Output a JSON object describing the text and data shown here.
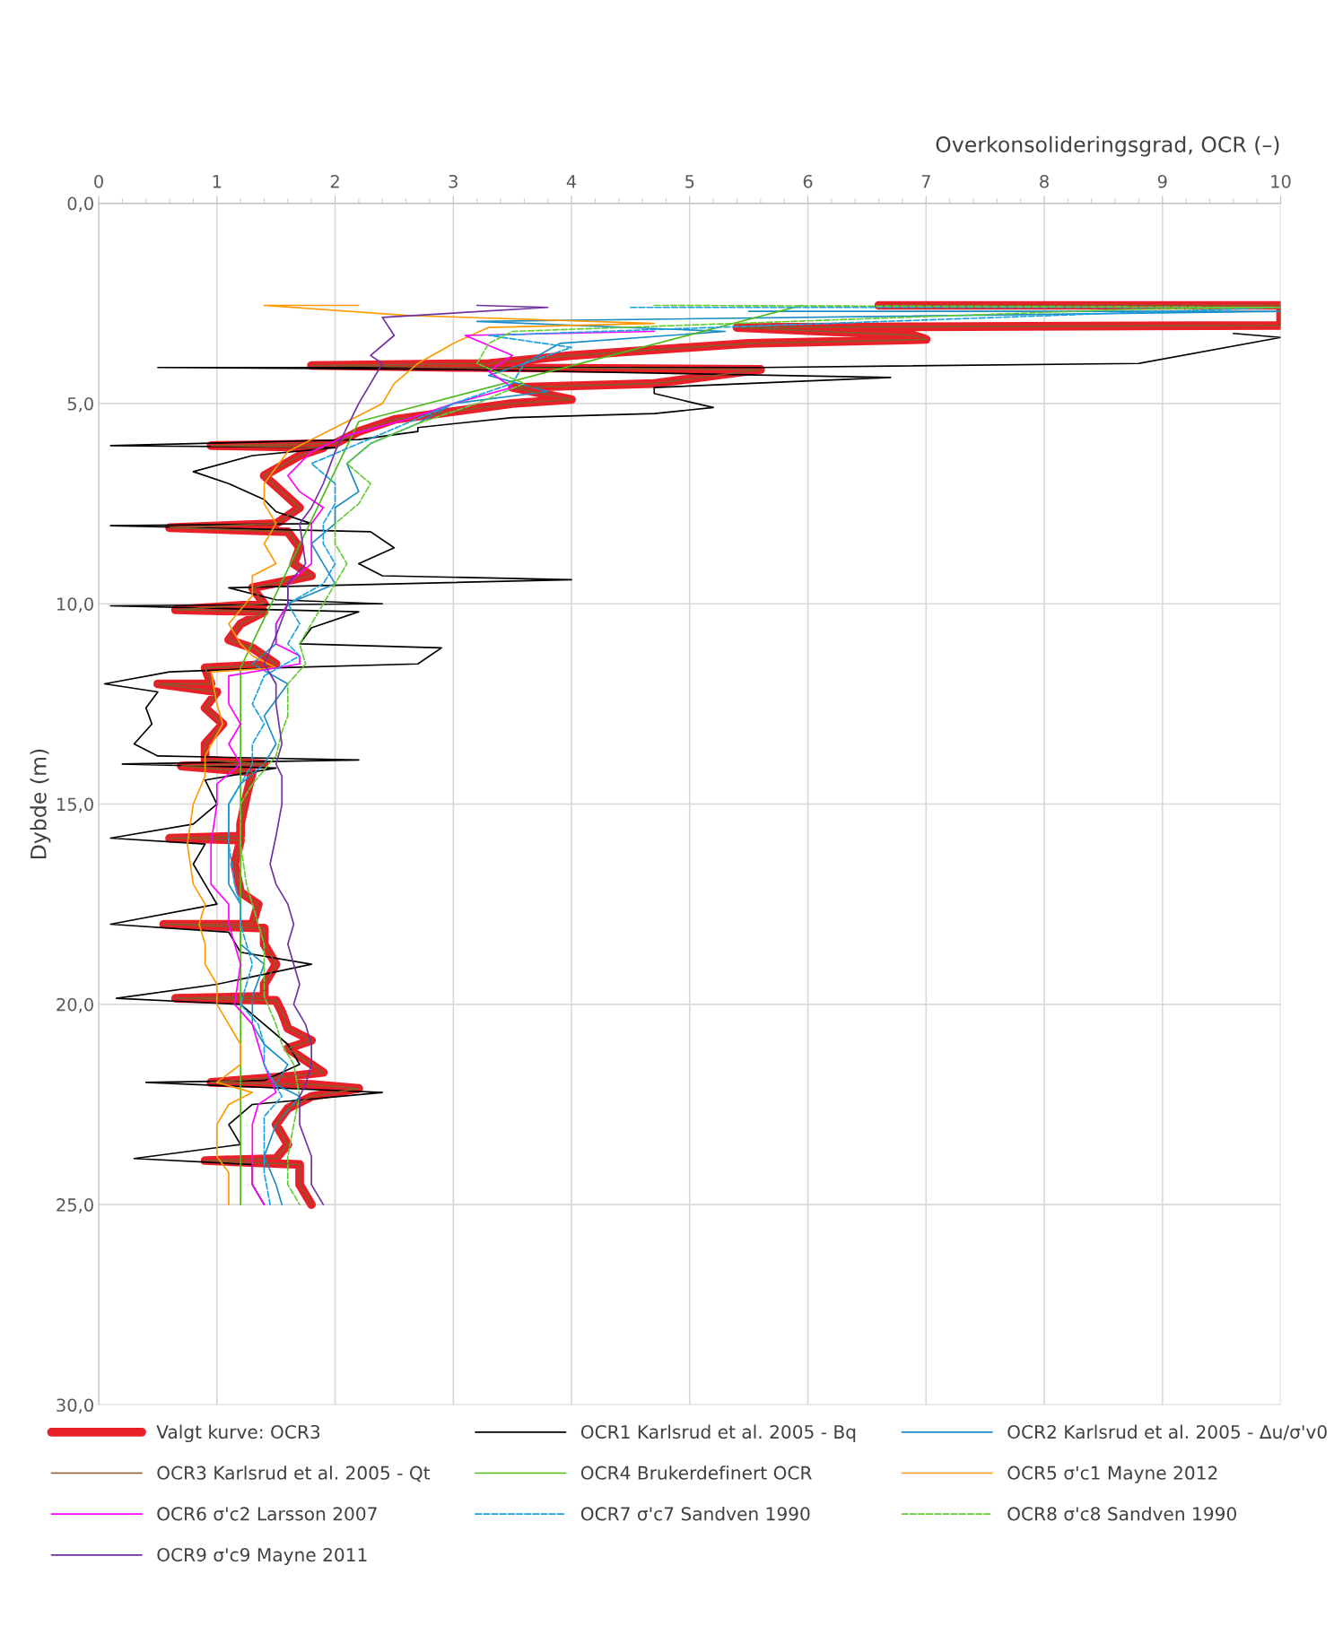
{
  "chart_data": {
    "type": "line",
    "xlabel": "Overkonsolideringsgrad, OCR (–)",
    "ylabel": "Dybde (m)",
    "xlim": [
      0,
      10
    ],
    "xticks": [
      0,
      1,
      2,
      3,
      4,
      5,
      6,
      7,
      8,
      9,
      10
    ],
    "ylim": [
      30,
      0
    ],
    "yticks": [
      {
        "value": 0,
        "label": "0,0"
      },
      {
        "value": 5,
        "label": "5,0"
      },
      {
        "value": 10,
        "label": "10,0"
      },
      {
        "value": 15,
        "label": "15,0"
      },
      {
        "value": 20,
        "label": "20,0"
      },
      {
        "value": 25,
        "label": "25,0"
      },
      {
        "value": 30,
        "label": "30,0"
      }
    ],
    "grid": true,
    "legend": "bottom",
    "marker": "none",
    "series": [
      {
        "name": "Valgt kurve: OCR3",
        "color": "#e8202a",
        "line_style": "solid",
        "x": [
          6.6,
          10,
          10,
          5.4,
          6.9,
          7.0,
          5.5,
          4.0,
          3.3,
          1.8,
          3.0,
          5.6,
          4.7,
          3.5,
          4.0,
          3.5,
          3.0,
          2.5,
          2.2,
          2.0,
          0.95,
          1.9,
          1.7,
          1.4,
          1.55,
          1.7,
          1.5,
          0.6,
          1.6,
          1.7,
          1.65,
          1.8,
          1.3,
          1.4,
          0.65,
          1.4,
          1.2,
          1.1,
          1.3,
          1.5,
          0.9,
          0.95,
          0.5,
          1.0,
          0.9,
          1.05,
          0.9,
          0.9,
          1.4,
          0.7,
          1.3,
          1.25,
          1.2,
          1.2,
          0.6,
          1.2,
          1.15,
          1.2,
          1.35,
          1.3,
          0.55,
          1.4,
          1.4,
          1.5,
          1.4,
          1.4,
          0.65,
          1.5,
          1.55,
          1.6,
          1.8,
          1.6,
          1.9,
          1.6,
          0.95,
          1.8,
          2.2,
          1.8,
          1.6,
          1.5,
          1.6,
          1.5,
          0.9,
          1.7,
          1.7,
          1.8
        ],
        "values": [
          2.55,
          2.55,
          3.05,
          3.1,
          3.3,
          3.4,
          3.5,
          3.8,
          4.0,
          4.05,
          4.1,
          4.15,
          4.5,
          4.6,
          4.9,
          5.0,
          5.2,
          5.4,
          5.7,
          6.0,
          6.05,
          6.1,
          6.3,
          6.8,
          7.2,
          7.6,
          8.0,
          8.1,
          8.2,
          8.6,
          9.0,
          9.3,
          9.6,
          10.0,
          10.15,
          10.2,
          10.5,
          10.9,
          11.1,
          11.5,
          11.6,
          12.0,
          12.0,
          12.2,
          12.6,
          13.0,
          13.5,
          13.9,
          14.0,
          14.05,
          14.2,
          14.8,
          15.5,
          15.8,
          15.85,
          15.9,
          16.5,
          17.2,
          17.5,
          18.0,
          18.0,
          18.1,
          18.5,
          19.0,
          19.5,
          19.8,
          19.85,
          19.9,
          20.2,
          20.6,
          20.9,
          21.1,
          21.7,
          21.8,
          21.95,
          22.0,
          22.1,
          22.3,
          22.6,
          23.0,
          23.5,
          23.85,
          23.9,
          24.0,
          24.5,
          25.0
        ]
      },
      {
        "name": "OCR1 Karlsrud et al. 2005 - Bq",
        "color": "#000000",
        "line_style": "solid",
        "x": [
          9.6,
          10,
          8.8,
          5.6,
          0.5,
          3.0,
          6.7,
          4.7,
          4.7,
          5.2,
          4.7,
          3.5,
          2.7,
          2.7,
          2.2,
          0.1,
          2.0,
          1.3,
          0.8,
          1.1,
          1.4,
          1.5,
          1.8,
          0.1,
          2.3,
          2.5,
          2.2,
          2.4,
          4.0,
          1.1,
          1.5,
          2.4,
          0.1,
          2.2,
          1.8,
          1.7,
          2.9,
          2.7,
          1.5,
          0.6,
          0.05,
          0.5,
          0.4,
          0.45,
          0.3,
          0.5,
          2.2,
          0.2,
          1.5,
          0.9,
          1.0,
          0.8,
          0.1,
          0.9,
          0.8,
          0.9,
          1.0,
          0.1,
          1.1,
          1.2,
          1.8,
          1.0,
          0.15,
          1.2,
          1.4,
          1.6,
          1.7,
          1.4,
          0.4,
          2.4,
          1.3,
          1.1,
          1.2,
          0.3,
          1.3,
          1.3,
          1.4
        ],
        "values": [
          3.25,
          3.35,
          4.0,
          4.1,
          4.1,
          4.15,
          4.35,
          4.6,
          4.75,
          5.1,
          5.25,
          5.35,
          5.6,
          5.7,
          5.9,
          6.05,
          6.1,
          6.3,
          6.7,
          7.0,
          7.4,
          7.7,
          8.0,
          8.05,
          8.2,
          8.6,
          9.0,
          9.3,
          9.4,
          9.6,
          9.9,
          10.0,
          10.05,
          10.2,
          10.6,
          11.0,
          11.1,
          11.5,
          11.6,
          11.7,
          12.0,
          12.2,
          12.6,
          13.0,
          13.5,
          13.8,
          13.9,
          14.0,
          14.1,
          14.4,
          15.0,
          15.5,
          15.85,
          16.0,
          16.5,
          17.0,
          17.5,
          18.0,
          18.2,
          18.7,
          19.0,
          19.5,
          19.85,
          20.0,
          20.5,
          21.0,
          21.5,
          21.9,
          21.95,
          22.2,
          22.5,
          23.0,
          23.5,
          23.85,
          24.0,
          24.5,
          25.0
        ]
      },
      {
        "name": "OCR2 Karlsrud et al. 2005 - Δu/σ'v0",
        "color": "#1b8cc4",
        "line_style": "solid",
        "x": [
          5.5,
          10,
          3.2,
          5.3,
          3.9,
          3.6,
          3.3,
          3.8,
          3.0,
          2.7,
          2.3,
          2.1,
          2.2,
          2.0,
          2.0,
          1.8,
          1.9,
          2.0,
          1.6,
          1.5,
          1.5,
          1.3,
          1.6,
          1.4,
          1.5,
          1.4,
          1.2,
          1.1,
          1.1,
          1.1,
          1.2,
          1.2,
          1.4,
          1.3,
          1.3,
          1.4,
          1.6,
          1.5,
          1.7,
          1.5,
          1.4,
          1.5,
          1.55
        ],
        "values": [
          2.7,
          2.7,
          2.95,
          3.2,
          3.5,
          4.0,
          4.3,
          4.7,
          5.0,
          5.5,
          6.0,
          6.5,
          7.2,
          7.6,
          8.0,
          8.5,
          9.0,
          9.5,
          10.0,
          10.5,
          11.0,
          11.5,
          12.0,
          12.8,
          13.5,
          14.0,
          14.5,
          15.0,
          16.0,
          17.0,
          17.5,
          18.5,
          19.0,
          19.8,
          20.5,
          21.0,
          21.5,
          22.0,
          22.3,
          23.0,
          23.8,
          24.5,
          25.0
        ]
      },
      {
        "name": "OCR3 Karlsrud et al. 2005 - Qt",
        "color": "#8b5a2b",
        "line_style": "solid",
        "x": [
          6.6,
          10,
          10,
          5.4,
          6.9,
          7.0,
          5.5,
          4.0,
          3.3,
          1.8,
          3.0,
          5.6,
          4.7,
          3.5,
          4.0,
          3.5,
          3.0,
          2.5,
          2.2,
          2.0,
          0.95,
          1.9,
          1.7,
          1.4,
          1.55,
          1.7,
          1.5,
          0.6,
          1.6,
          1.7,
          1.65,
          1.8,
          1.3,
          1.4,
          0.65,
          1.4,
          1.2,
          1.1,
          1.3,
          1.5,
          0.9,
          0.95,
          0.5,
          1.0,
          0.9,
          1.05,
          0.9,
          0.9,
          1.4,
          0.7,
          1.3,
          1.25,
          1.2,
          1.2,
          0.6,
          1.2,
          1.15,
          1.2,
          1.35,
          1.3,
          0.55,
          1.4,
          1.4,
          1.5,
          1.4,
          1.4,
          0.65,
          1.5,
          1.55,
          1.6,
          1.8,
          1.6,
          1.9,
          1.6,
          0.95,
          1.8,
          2.2,
          1.8,
          1.6,
          1.5,
          1.6,
          1.5,
          0.9,
          1.7,
          1.7,
          1.8
        ],
        "values": [
          2.55,
          2.55,
          3.05,
          3.1,
          3.3,
          3.4,
          3.5,
          3.8,
          4.0,
          4.05,
          4.1,
          4.15,
          4.5,
          4.6,
          4.9,
          5.0,
          5.2,
          5.4,
          5.7,
          6.0,
          6.05,
          6.1,
          6.3,
          6.8,
          7.2,
          7.6,
          8.0,
          8.1,
          8.2,
          8.6,
          9.0,
          9.3,
          9.6,
          10.0,
          10.15,
          10.2,
          10.5,
          10.9,
          11.1,
          11.5,
          11.6,
          12.0,
          12.0,
          12.2,
          12.6,
          13.0,
          13.5,
          13.9,
          14.0,
          14.05,
          14.2,
          14.8,
          15.5,
          15.8,
          15.85,
          15.9,
          16.5,
          17.2,
          17.5,
          18.0,
          18.0,
          18.1,
          18.5,
          19.0,
          19.5,
          19.8,
          19.85,
          19.9,
          20.2,
          20.6,
          20.9,
          21.1,
          21.7,
          21.8,
          21.95,
          22.0,
          22.1,
          22.3,
          22.6,
          23.0,
          23.5,
          23.85,
          23.9,
          24.0,
          24.5,
          25.0
        ]
      },
      {
        "name": "OCR4 Brukerdefinert OCR",
        "color": "#4cbb17",
        "line_style": "solid",
        "x": [
          5.95,
          2.2,
          1.2,
          1.2
        ],
        "values": [
          2.55,
          5.45,
          11.6,
          25.0
        ]
      },
      {
        "name": "OCR5 σ'c1 Mayne 2012",
        "color": "#ff9900",
        "line_style": "solid",
        "x": [
          2.2,
          1.4,
          2.6,
          4.7,
          3.3,
          3.0,
          2.7,
          2.5,
          2.4,
          2.0,
          1.6,
          1.4,
          1.4,
          1.5,
          1.4,
          1.5,
          1.3,
          1.3,
          1.1,
          1.2,
          1.3,
          1.5,
          0.95,
          1.0,
          1.05,
          0.9,
          0.9,
          0.8,
          0.75,
          0.8,
          0.9,
          0.85,
          0.9,
          0.9,
          1.0,
          1.0,
          1.1,
          1.2,
          1.2,
          1.0,
          1.3,
          1.1,
          1.0,
          1.0,
          1.1,
          1.1
        ],
        "values": [
          2.55,
          2.55,
          2.8,
          3.0,
          3.1,
          3.5,
          4.0,
          4.5,
          5.0,
          5.6,
          6.2,
          7.0,
          7.5,
          8.0,
          8.5,
          9.0,
          9.3,
          9.8,
          10.5,
          11.0,
          11.3,
          11.6,
          11.7,
          12.5,
          13.0,
          13.8,
          14.3,
          15.0,
          16.0,
          17.0,
          17.5,
          18.0,
          18.5,
          19.0,
          19.5,
          20.0,
          20.5,
          21.0,
          21.5,
          21.95,
          22.2,
          22.5,
          23.0,
          23.8,
          24.2,
          25.0
        ]
      },
      {
        "name": "OCR6 σ'c2 Larsson 2007",
        "color": "#ff00ff",
        "line_style": "solid",
        "x": [
          4.7,
          3.1,
          3.5,
          3.3,
          3.5,
          3.0,
          2.6,
          2.1,
          1.8,
          1.6,
          1.7,
          1.9,
          1.8,
          1.8,
          1.8,
          1.6,
          1.6,
          1.5,
          1.5,
          1.7,
          1.7,
          1.1,
          1.1,
          1.2,
          1.1,
          1.2,
          1.0,
          1.0,
          0.95,
          0.95,
          1.1,
          1.1,
          1.15,
          1.2,
          1.15,
          1.3,
          1.35,
          1.4,
          1.5,
          1.35,
          1.3,
          1.3,
          1.3,
          1.4
        ],
        "values": [
          3.2,
          3.3,
          3.8,
          4.2,
          4.6,
          5.0,
          5.4,
          5.8,
          6.2,
          6.8,
          7.2,
          7.6,
          8.0,
          8.6,
          9.0,
          9.5,
          10.0,
          10.5,
          11.0,
          11.3,
          11.5,
          11.8,
          12.5,
          13.0,
          13.5,
          14.0,
          14.5,
          15.0,
          16.0,
          17.0,
          17.5,
          18.0,
          18.5,
          19.0,
          20.0,
          20.5,
          21.0,
          21.5,
          22.2,
          22.5,
          23.0,
          23.8,
          24.5,
          25.0
        ]
      },
      {
        "name": "OCR7 σ'c7 Sandven 1990",
        "color": "#1ba1e2",
        "line_style": "dashed",
        "x": [
          4.5,
          10,
          3.3,
          4.0,
          3.6,
          3.5,
          3.0,
          2.6,
          2.2,
          1.8,
          2.0,
          2.0,
          1.9,
          1.9,
          2.0,
          1.9,
          1.6,
          1.7,
          1.6,
          1.7,
          1.4,
          1.3,
          1.4,
          1.3,
          1.3,
          1.2,
          1.1,
          1.1,
          1.15,
          1.2,
          1.2,
          1.25,
          1.3,
          1.2,
          1.35,
          1.4,
          1.4,
          1.55,
          1.4,
          1.4,
          1.4,
          1.45
        ],
        "values": [
          2.6,
          2.6,
          3.3,
          3.6,
          4.0,
          4.5,
          5.0,
          5.5,
          6.0,
          6.5,
          7.0,
          7.5,
          8.0,
          8.5,
          9.0,
          9.5,
          10.0,
          10.5,
          11.0,
          11.3,
          11.8,
          12.5,
          13.0,
          13.5,
          14.0,
          14.5,
          15.0,
          16.0,
          17.0,
          17.5,
          18.0,
          18.5,
          19.0,
          20.0,
          20.5,
          21.0,
          21.5,
          22.3,
          22.8,
          23.5,
          24.2,
          25.0
        ]
      },
      {
        "name": "OCR8 σ'c8 Sandven 1990",
        "color": "#66cc33",
        "line_style": "dashed",
        "x": [
          4.7,
          10,
          8.7,
          3.5,
          3.3,
          3.2,
          3.6,
          3.2,
          2.7,
          2.3,
          2.1,
          2.3,
          2.2,
          2.0,
          2.0,
          2.1,
          2.0,
          1.9,
          1.8,
          1.7,
          1.75,
          1.6,
          1.6,
          1.55,
          1.5,
          1.3,
          1.2,
          1.2,
          1.25,
          1.3,
          1.35,
          1.4,
          1.4,
          1.4,
          1.5,
          1.55,
          1.65,
          1.7,
          1.65,
          1.6,
          1.6,
          1.7
        ],
        "values": [
          2.55,
          2.6,
          2.65,
          3.2,
          3.5,
          4.0,
          4.5,
          5.0,
          5.5,
          6.0,
          6.5,
          7.0,
          7.5,
          8.0,
          8.5,
          9.0,
          9.5,
          10.0,
          10.5,
          11.0,
          11.5,
          12.0,
          12.8,
          13.2,
          13.8,
          14.5,
          15.0,
          16.0,
          17.0,
          17.5,
          18.0,
          18.5,
          19.0,
          19.8,
          20.5,
          21.0,
          21.5,
          22.3,
          23.0,
          23.8,
          24.5,
          25.0
        ]
      },
      {
        "name": "OCR9 σ'c9 Mayne 2011",
        "color": "#7030a0",
        "line_style": "solid",
        "x": [
          3.2,
          3.8,
          2.4,
          2.5,
          2.3,
          2.4,
          2.3,
          2.2,
          2.1,
          2.0,
          1.9,
          1.8,
          1.7,
          1.75,
          1.6,
          1.6,
          1.5,
          1.4,
          1.5,
          1.5,
          1.55,
          1.5,
          1.55,
          1.55,
          1.5,
          1.45,
          1.5,
          1.6,
          1.65,
          1.6,
          1.65,
          1.7,
          1.65,
          1.75,
          1.8,
          1.8,
          1.75,
          1.7,
          1.7,
          1.8,
          1.8,
          1.9
        ],
        "values": [
          2.55,
          2.6,
          2.85,
          3.3,
          3.8,
          4.0,
          4.5,
          5.0,
          5.6,
          6.2,
          7.0,
          7.6,
          8.0,
          9.0,
          9.5,
          10.0,
          10.8,
          11.5,
          12.0,
          12.5,
          13.5,
          14.0,
          14.3,
          15.0,
          15.8,
          16.5,
          17.0,
          17.5,
          18.0,
          18.5,
          19.0,
          19.5,
          20.0,
          20.5,
          21.0,
          21.5,
          22.0,
          22.3,
          23.0,
          23.8,
          24.5,
          25.0
        ]
      }
    ]
  }
}
